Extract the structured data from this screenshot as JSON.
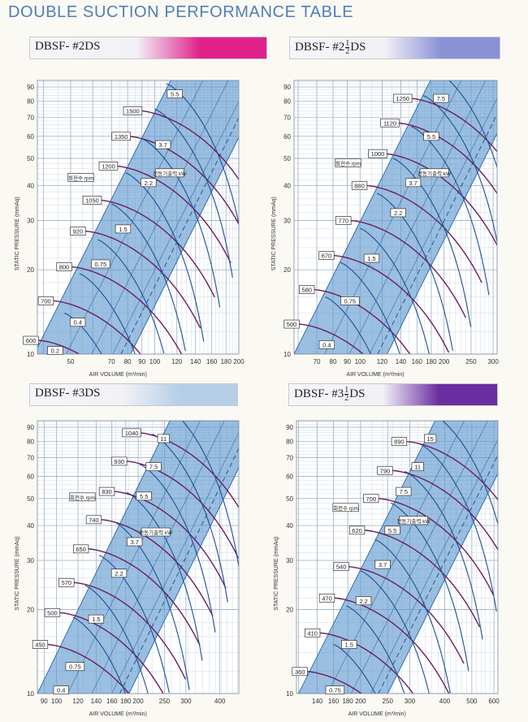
{
  "page": {
    "title": "DOUBLE SUCTION PERFORMANCE TABLE"
  },
  "chart_data": [
    {
      "type": "line",
      "model": {
        "prefix": "DBSF- #2",
        "suffix": "DS",
        "fraction": null
      },
      "banner_color": "#e0218a",
      "ylabel": "STATIC PRESSURE (mmAq)",
      "xlabel": "AIR VOLUME (m³/min)",
      "scale": "log-log",
      "yticks": [
        10,
        20,
        30,
        40,
        50,
        60,
        70,
        80,
        90
      ],
      "xticks": [
        40,
        50,
        60,
        70,
        80,
        90,
        100,
        120,
        140,
        160,
        180,
        200
      ],
      "xtick_labels": [
        "50",
        "70",
        "80",
        "90",
        "100",
        "120",
        "140",
        "160",
        "180",
        "200"
      ],
      "xtick_label_values": [
        50,
        70,
        80,
        90,
        100,
        120,
        140,
        160,
        180,
        200
      ],
      "xlim": [
        38,
        200
      ],
      "ylim": [
        10,
        95
      ],
      "band_x_at_ymin": [
        37,
        82
      ],
      "rpm_label_key": "회전수 rpm",
      "kw_label_key": "전동기출력 kW",
      "rpm_curves": [
        {
          "rpm": "600",
          "x0": 38,
          "y0": 11.2
        },
        {
          "rpm": "700",
          "x0": 43,
          "y0": 15.5
        },
        {
          "rpm": "800",
          "x0": 50,
          "y0": 20.5
        },
        {
          "rpm": "920",
          "x0": 56,
          "y0": 27.5
        },
        {
          "rpm": "1050",
          "x0": 63,
          "y0": 35.5
        },
        {
          "rpm": "1200",
          "x0": 72,
          "y0": 47
        },
        {
          "rpm": "1350",
          "x0": 80,
          "y0": 60
        },
        {
          "rpm": "1500",
          "x0": 88,
          "y0": 74
        }
      ],
      "kw_labels": [
        {
          "kw": "0.2",
          "x": 44,
          "y": 10.3
        },
        {
          "kw": "0.4",
          "x": 53,
          "y": 13
        },
        {
          "kw": "0.75",
          "x": 64,
          "y": 21
        },
        {
          "kw": "1.5",
          "x": 77,
          "y": 28
        },
        {
          "kw": "2.2",
          "x": 95,
          "y": 41
        },
        {
          "kw": "3.7",
          "x": 107,
          "y": 56
        },
        {
          "kw": "5.5",
          "x": 118,
          "y": 85
        }
      ]
    },
    {
      "type": "line",
      "model": {
        "prefix": "DBSF- #2",
        "suffix": "DS",
        "fraction": [
          "1",
          "2"
        ]
      },
      "banner_color": "#8a92d6",
      "ylabel": "STATIC PRESSURE (mmAq)",
      "xlabel": "AIR VOLUME (m³/min)",
      "scale": "log-log",
      "yticks": [
        10,
        20,
        30,
        40,
        50,
        60,
        70,
        80,
        90
      ],
      "xticks": [
        60,
        70,
        80,
        90,
        100,
        120,
        140,
        160,
        180,
        200,
        250,
        300
      ],
      "xtick_labels": [
        "70",
        "80",
        "90",
        "100",
        "120",
        "140",
        "160",
        "180",
        "200",
        "250",
        "300"
      ],
      "xtick_label_values": [
        70,
        80,
        90,
        100,
        120,
        140,
        160,
        180,
        200,
        250,
        300
      ],
      "xlim": [
        58,
        310
      ],
      "ylim": [
        10,
        95
      ],
      "band_x_at_ymin": [
        58,
        125
      ],
      "rpm_label_key": "회전수 rpm",
      "kw_label_key": "전동기출력 kW",
      "rpm_curves": [
        {
          "rpm": "500",
          "x0": 60,
          "y0": 12.8
        },
        {
          "rpm": "580",
          "x0": 68,
          "y0": 17
        },
        {
          "rpm": "670",
          "x0": 80,
          "y0": 22.5
        },
        {
          "rpm": "770",
          "x0": 92,
          "y0": 30
        },
        {
          "rpm": "880",
          "x0": 105,
          "y0": 40
        },
        {
          "rpm": "1000",
          "x0": 122,
          "y0": 52
        },
        {
          "rpm": "1120",
          "x0": 135,
          "y0": 67
        },
        {
          "rpm": "1250",
          "x0": 150,
          "y0": 82
        }
      ],
      "kw_labels": [
        {
          "kw": "0.4",
          "x": 76,
          "y": 10.8
        },
        {
          "kw": "0.75",
          "x": 92,
          "y": 15.5
        },
        {
          "kw": "1.5",
          "x": 110,
          "y": 22
        },
        {
          "kw": "2.2",
          "x": 137,
          "y": 32
        },
        {
          "kw": "3.7",
          "x": 155,
          "y": 41
        },
        {
          "kw": "5.5",
          "x": 180,
          "y": 60
        },
        {
          "kw": "7.5",
          "x": 195,
          "y": 82
        }
      ]
    },
    {
      "type": "line",
      "model": {
        "prefix": "DBSF- #3",
        "suffix": "DS",
        "fraction": null
      },
      "banner_color": "#b6cfe8",
      "ylabel": "STATIC PRESSURE (mmAq)",
      "xlabel": "AIR VOLUME (m³/min)",
      "scale": "log-log",
      "yticks": [
        10,
        20,
        30,
        40,
        50,
        60,
        70,
        80,
        90
      ],
      "xticks": [
        90,
        100,
        120,
        140,
        160,
        180,
        200,
        250,
        300,
        400
      ],
      "xtick_labels": [
        "90",
        "100",
        "120",
        "140",
        "160",
        "180",
        "200",
        "250",
        "300",
        "400"
      ],
      "xtick_label_values": [
        90,
        100,
        120,
        140,
        160,
        180,
        200,
        250,
        300,
        400
      ],
      "xlim": [
        85,
        470
      ],
      "ylim": [
        10,
        95
      ],
      "band_x_at_ymin": [
        85,
        185
      ],
      "rpm_label_key": "회전수 rpm",
      "kw_label_key": "전동기출력 kW",
      "rpm_curves": [
        {
          "rpm": "450",
          "x0": 92,
          "y0": 15
        },
        {
          "rpm": "500",
          "x0": 102,
          "y0": 19.5
        },
        {
          "rpm": "570",
          "x0": 115,
          "y0": 25
        },
        {
          "rpm": "650",
          "x0": 130,
          "y0": 33
        },
        {
          "rpm": "740",
          "x0": 145,
          "y0": 42
        },
        {
          "rpm": "830",
          "x0": 162,
          "y0": 53
        },
        {
          "rpm": "930",
          "x0": 180,
          "y0": 68
        },
        {
          "rpm": "1040",
          "x0": 200,
          "y0": 86
        }
      ],
      "kw_labels": [
        {
          "kw": "0.4",
          "x": 104,
          "y": 10.3
        },
        {
          "kw": "0.75",
          "x": 117,
          "y": 12.5
        },
        {
          "kw": "1.5",
          "x": 140,
          "y": 18.5
        },
        {
          "kw": "2.2",
          "x": 170,
          "y": 27
        },
        {
          "kw": "3.7",
          "x": 194,
          "y": 35
        },
        {
          "kw": "5.5",
          "x": 210,
          "y": 51
        },
        {
          "kw": "7.5",
          "x": 228,
          "y": 65
        },
        {
          "kw": "11",
          "x": 248,
          "y": 82
        }
      ]
    },
    {
      "type": "line",
      "model": {
        "prefix": "DBSF- #3",
        "suffix": "DS",
        "fraction": [
          "1",
          "2"
        ]
      },
      "banner_color": "#6a2ea0",
      "ylabel": "STATIC PRESSURE (mmAq)",
      "xlabel": "AIR VOLUME (m³/min)",
      "scale": "log-log",
      "yticks": [
        10,
        20,
        30,
        40,
        50,
        60,
        70,
        80,
        90
      ],
      "xticks": [
        120,
        140,
        160,
        180,
        200,
        250,
        300,
        400,
        500,
        600
      ],
      "xtick_labels": [
        "140",
        "160",
        "180",
        "200",
        "250",
        "300",
        "400",
        "500",
        "600"
      ],
      "xtick_label_values": [
        140,
        160,
        180,
        200,
        250,
        300,
        400,
        500,
        600
      ],
      "xlim": [
        118,
        620
      ],
      "ylim": [
        10,
        95
      ],
      "band_x_at_ymin": [
        120,
        250
      ],
      "rpm_label_key": "회전수 rpm",
      "kw_label_key": "전동기출력 kW",
      "rpm_curves": [
        {
          "rpm": "360",
          "x0": 128,
          "y0": 12
        },
        {
          "rpm": "410",
          "x0": 142,
          "y0": 16.5
        },
        {
          "rpm": "470",
          "x0": 160,
          "y0": 22
        },
        {
          "rpm": "540",
          "x0": 180,
          "y0": 28.5
        },
        {
          "rpm": "620",
          "x0": 205,
          "y0": 38.5
        },
        {
          "rpm": "700",
          "x0": 230,
          "y0": 50
        },
        {
          "rpm": "790",
          "x0": 258,
          "y0": 63
        },
        {
          "rpm": "890",
          "x0": 290,
          "y0": 80
        }
      ],
      "kw_labels": [
        {
          "kw": "0.75",
          "x": 162,
          "y": 10.3
        },
        {
          "kw": "1.5",
          "x": 182,
          "y": 15
        },
        {
          "kw": "2.2",
          "x": 205,
          "y": 21.5
        },
        {
          "kw": "3.7",
          "x": 240,
          "y": 29
        },
        {
          "kw": "5.5",
          "x": 260,
          "y": 38.5
        },
        {
          "kw": "7.5",
          "x": 285,
          "y": 53
        },
        {
          "kw": "11",
          "x": 320,
          "y": 65
        },
        {
          "kw": "15",
          "x": 355,
          "y": 82
        }
      ]
    }
  ]
}
